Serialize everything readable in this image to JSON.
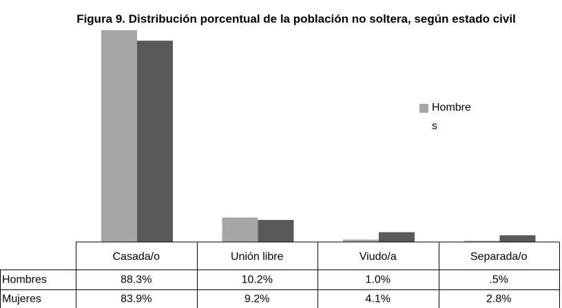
{
  "chart_data": {
    "type": "bar",
    "title": "Figura 9. Distribución porcentual de la población no soltera, según estado civil",
    "categories": [
      "Casada/o",
      "Unión libre",
      "Viudo/a",
      "Separada/o"
    ],
    "series": [
      {
        "name": "Hombres",
        "color": "#a6a6a6",
        "values": [
          88.3,
          10.2,
          1.0,
          0.5
        ],
        "value_labels": [
          "88.3%",
          "10.2%",
          "1.0%",
          ".5%"
        ]
      },
      {
        "name": "Mujeres",
        "color": "#595959",
        "values": [
          83.9,
          9.2,
          4.1,
          2.8
        ],
        "value_labels": [
          "83.9%",
          "9.2%",
          "4.1%",
          "2.8%"
        ]
      }
    ]
  }
}
